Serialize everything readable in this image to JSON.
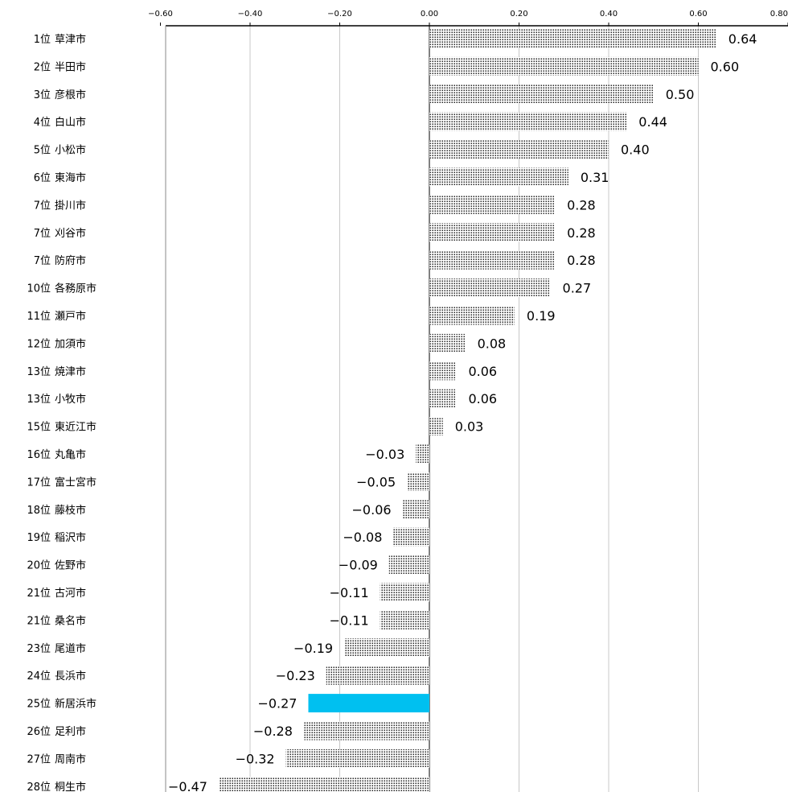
{
  "chart_data": {
    "type": "bar",
    "orientation": "horizontal",
    "title": "",
    "xlabel": "",
    "ylabel": "",
    "xlim": [
      -0.6,
      0.8
    ],
    "x_ticks": [
      -0.6,
      -0.4,
      -0.2,
      0.0,
      0.2,
      0.4,
      0.6,
      0.8
    ],
    "x_tick_labels": [
      "−0.60",
      "−0.40",
      "−0.20",
      "0.00",
      "0.20",
      "0.40",
      "0.60",
      "0.80"
    ],
    "grid": true,
    "axis_position": "top",
    "categories": [
      "1位 草津市",
      "2位 半田市",
      "3位 彦根市",
      "4位 白山市",
      "5位 小松市",
      "6位 東海市",
      "7位 掛川市",
      "7位 刈谷市",
      "7位 防府市",
      "10位 各務原市",
      "11位 瀬戸市",
      "12位 加須市",
      "13位 焼津市",
      "13位 小牧市",
      "15位 東近江市",
      "16位 丸亀市",
      "17位 富士宮市",
      "18位 藤枝市",
      "19位 稲沢市",
      "20位 佐野市",
      "21位 古河市",
      "21位 桑名市",
      "23位 尾道市",
      "24位 長浜市",
      "25位 新居浜市",
      "26位 足利市",
      "27位 周南市",
      "28位 桐生市"
    ],
    "values": [
      0.64,
      0.6,
      0.5,
      0.44,
      0.4,
      0.31,
      0.28,
      0.28,
      0.28,
      0.27,
      0.19,
      0.08,
      0.06,
      0.06,
      0.03,
      -0.03,
      -0.05,
      -0.06,
      -0.08,
      -0.09,
      -0.11,
      -0.11,
      -0.19,
      -0.23,
      -0.27,
      -0.28,
      -0.32,
      -0.47
    ],
    "value_labels": [
      "0.64",
      "0.60",
      "0.50",
      "0.44",
      "0.40",
      "0.31",
      "0.28",
      "0.28",
      "0.28",
      "0.27",
      "0.19",
      "0.08",
      "0.06",
      "0.06",
      "0.03",
      "−0.03",
      "−0.05",
      "−0.06",
      "−0.08",
      "−0.09",
      "−0.11",
      "−0.11",
      "−0.19",
      "−0.23",
      "−0.27",
      "−0.28",
      "−0.32",
      "−0.47"
    ],
    "highlight_index": 24,
    "colors": {
      "highlight": "#00c0f0",
      "pattern_dots": "#000000",
      "gridline": "#c8c8c8",
      "axis": "#000000"
    }
  }
}
